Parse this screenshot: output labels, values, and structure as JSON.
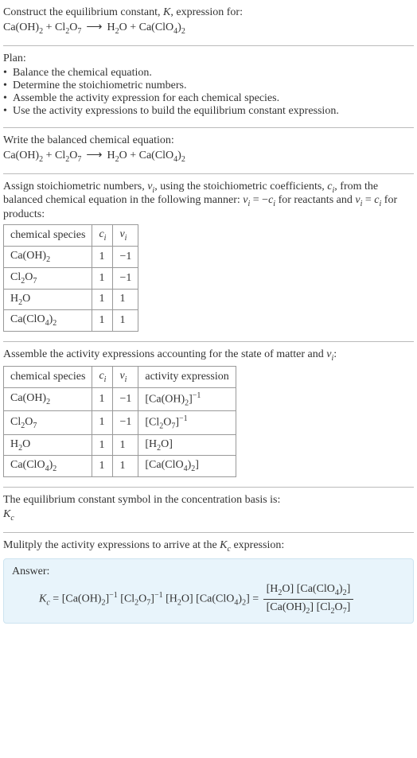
{
  "intro": {
    "line1": "Construct the equilibrium constant, ",
    "K": "K",
    "line1b": ", expression for:",
    "eqn_lhs1": "Ca(OH)",
    "eqn_lhs1_sub": "2",
    "eqn_plus1": " + ",
    "eqn_lhs2": "Cl",
    "eqn_lhs2_sub": "2",
    "eqn_lhs2b": "O",
    "eqn_lhs2b_sub": "7",
    "arrow": "⟶",
    "eqn_rhs1": "H",
    "eqn_rhs1_sub": "2",
    "eqn_rhs1b": "O",
    "eqn_plus2": " + ",
    "eqn_rhs2": "Ca(ClO",
    "eqn_rhs2_sub": "4",
    "eqn_rhs2b": ")",
    "eqn_rhs2b_sub": "2"
  },
  "plan": {
    "title": "Plan:",
    "b1": "Balance the chemical equation.",
    "b2": "Determine the stoichiometric numbers.",
    "b3": "Assemble the activity expression for each chemical species.",
    "b4": "Use the activity expressions to build the equilibrium constant expression.",
    "dot": "•"
  },
  "bal": {
    "text": "Write the balanced chemical equation:"
  },
  "assign": {
    "t1": "Assign stoichiometric numbers, ",
    "nu": "ν",
    "nui": "i",
    "t2": ", using the stoichiometric coefficients, ",
    "c": "c",
    "ci": "i",
    "t3": ", from the balanced chemical equation in the following manner: ",
    "eq1a": "ν",
    "eq1b": " = −",
    "eq1c": "c",
    "t4": " for reactants and ",
    "eq2a": "ν",
    "eq2b": " = ",
    "eq2c": "c",
    "t5": " for products:"
  },
  "table1": {
    "h1": "chemical species",
    "h2": "c",
    "h2i": "i",
    "h3": "ν",
    "h3i": "i",
    "rows": [
      {
        "sp_a": "Ca(OH)",
        "sp_as": "2",
        "sp_b": "",
        "sp_bs": "",
        "sp_c": "",
        "sp_cs": "",
        "c": "1",
        "v": "−1"
      },
      {
        "sp_a": "Cl",
        "sp_as": "2",
        "sp_b": "O",
        "sp_bs": "7",
        "sp_c": "",
        "sp_cs": "",
        "c": "1",
        "v": "−1"
      },
      {
        "sp_a": "H",
        "sp_as": "2",
        "sp_b": "O",
        "sp_bs": "",
        "sp_c": "",
        "sp_cs": "",
        "c": "1",
        "v": "1"
      },
      {
        "sp_a": "Ca(ClO",
        "sp_as": "4",
        "sp_b": ")",
        "sp_bs": "2",
        "sp_c": "",
        "sp_cs": "",
        "c": "1",
        "v": "1"
      }
    ]
  },
  "assemble": {
    "t1": "Assemble the activity expressions accounting for the state of matter and ",
    "nu": "ν",
    "nui": "i",
    "t2": ":"
  },
  "table2": {
    "h1": "chemical species",
    "h2": "c",
    "h2i": "i",
    "h3": "ν",
    "h3i": "i",
    "h4": "activity expression",
    "rows": [
      {
        "sp_a": "Ca(OH)",
        "sp_as": "2",
        "sp_b": "",
        "sp_bs": "",
        "c": "1",
        "v": "−1",
        "ax_a": "[Ca(OH)",
        "ax_as": "2",
        "ax_b": "]",
        "ax_bs": "",
        "ax_sup": "−1"
      },
      {
        "sp_a": "Cl",
        "sp_as": "2",
        "sp_b": "O",
        "sp_bs": "7",
        "c": "1",
        "v": "−1",
        "ax_a": "[Cl",
        "ax_as": "2",
        "ax_b": "O",
        "ax_bs": "7",
        "ax_c": "]",
        "ax_sup": "−1"
      },
      {
        "sp_a": "H",
        "sp_as": "2",
        "sp_b": "O",
        "sp_bs": "",
        "c": "1",
        "v": "1",
        "ax_a": "[H",
        "ax_as": "2",
        "ax_b": "O]",
        "ax_bs": "",
        "ax_sup": ""
      },
      {
        "sp_a": "Ca(ClO",
        "sp_as": "4",
        "sp_b": ")",
        "sp_bs": "2",
        "c": "1",
        "v": "1",
        "ax_a": "[Ca(ClO",
        "ax_as": "4",
        "ax_b": ")",
        "ax_bs": "2",
        "ax_c": "]",
        "ax_sup": ""
      }
    ]
  },
  "concbasis": {
    "t1": "The equilibrium constant symbol in the concentration basis is:",
    "K": "K",
    "Kc": "c"
  },
  "mult": {
    "t1": "Mulitply the activity expressions to arrive at the ",
    "K": "K",
    "Kc": "c",
    "t2": " expression:"
  },
  "answer": {
    "label": "Answer:",
    "K": "K",
    "Kc": "c",
    "eq": " = ",
    "p1a": "[Ca(OH)",
    "p1as": "2",
    "p1b": "]",
    "p1sup": "−1",
    "sp": " ",
    "p2a": "[Cl",
    "p2as": "2",
    "p2b": "O",
    "p2bs": "7",
    "p2c": "]",
    "p2sup": "−1",
    "p3a": "[H",
    "p3as": "2",
    "p3b": "O]",
    "p4a": "[Ca(ClO",
    "p4as": "4",
    "p4b": ")",
    "p4bs": "2",
    "p4c": "]",
    "eq2": " = ",
    "num1a": "[H",
    "num1as": "2",
    "num1b": "O]",
    "num2a": "[Ca(ClO",
    "num2as": "4",
    "num2b": ")",
    "num2bs": "2",
    "num2c": "]",
    "den1a": "[Ca(OH)",
    "den1as": "2",
    "den1b": "]",
    "den2a": "[Cl",
    "den2as": "2",
    "den2b": "O",
    "den2bs": "7",
    "den2c": "]"
  },
  "colors": {
    "text": "#333333",
    "border": "#bbbbbb",
    "table_border": "#999999",
    "answer_bg": "#e8f4fb",
    "answer_border": "#cde4f0"
  }
}
